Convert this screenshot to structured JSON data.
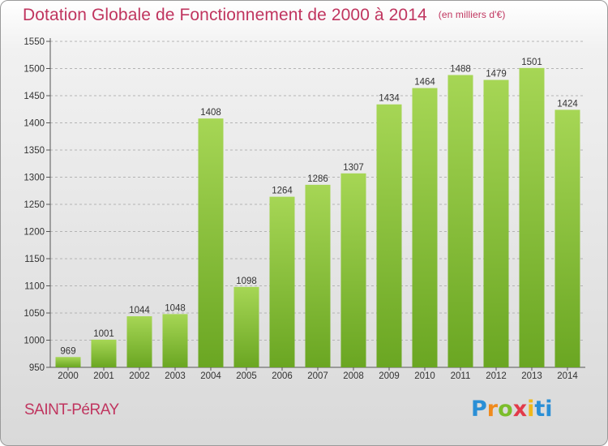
{
  "header": {
    "title": "Dotation Globale de Fonctionnement de 2000 à 2014",
    "subtitle": "(en milliers d'€)"
  },
  "footer": {
    "commune": "SAINT-PéRAY",
    "logo_letters": [
      "P",
      "r",
      "o",
      "x",
      "i",
      "ti"
    ]
  },
  "colors": {
    "title": "#c0355f",
    "bar_light": "#a6d655",
    "bar_dark": "#6aa622"
  },
  "chart_data": {
    "type": "bar",
    "title": "Dotation Globale de Fonctionnement de 2000 à 2014",
    "subtitle": "(en milliers d'€)",
    "categories": [
      "2000",
      "2001",
      "2002",
      "2003",
      "2004",
      "2005",
      "2006",
      "2007",
      "2008",
      "2009",
      "2010",
      "2011",
      "2012",
      "2013",
      "2014"
    ],
    "values": [
      969,
      1001,
      1044,
      1048,
      1408,
      1098,
      1264,
      1286,
      1307,
      1434,
      1464,
      1488,
      1479,
      1501,
      1424
    ],
    "ylim": [
      950,
      1550
    ],
    "yticks": [
      950,
      1000,
      1050,
      1100,
      1150,
      1200,
      1250,
      1300,
      1350,
      1400,
      1450,
      1500,
      1550
    ],
    "grid": true,
    "data_labels": true
  }
}
